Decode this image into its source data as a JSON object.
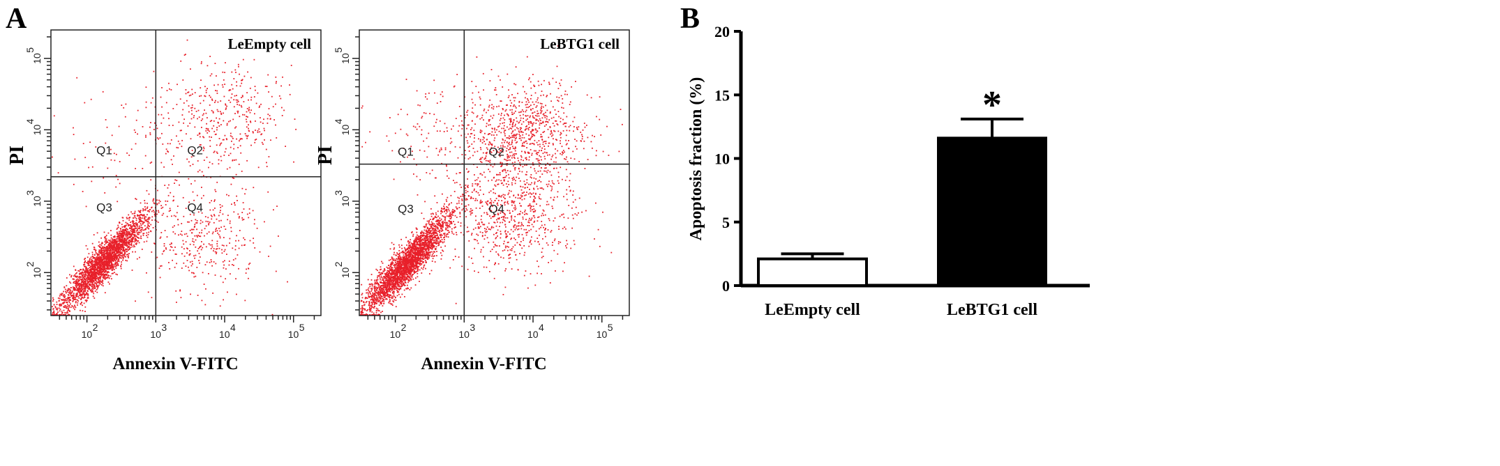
{
  "panels": {
    "a_label": "A",
    "b_label": "B"
  },
  "chart_data": [
    {
      "type": "scatter",
      "title": "LeEmpty cell",
      "xlabel": "Annexin V-FITC",
      "ylabel": "PI",
      "xscale": "log",
      "yscale": "log",
      "xlim": [
        30,
        250000
      ],
      "ylim": [
        25,
        250000
      ],
      "x_ticks": [
        {
          "value": 100,
          "base": "10",
          "exp": "2"
        },
        {
          "value": 1000,
          "base": "10",
          "exp": "3"
        },
        {
          "value": 10000,
          "base": "10",
          "exp": "4"
        },
        {
          "value": 100000,
          "base": "10",
          "exp": "5"
        }
      ],
      "y_ticks": [
        {
          "value": 100,
          "base": "10",
          "exp": "2"
        },
        {
          "value": 1000,
          "base": "10",
          "exp": "3"
        },
        {
          "value": 10000,
          "base": "10",
          "exp": "4"
        },
        {
          "value": 100000,
          "base": "10",
          "exp": "5"
        }
      ],
      "gate": {
        "x": 1000,
        "y": 2200
      },
      "quadrants": [
        "Q1",
        "Q2",
        "Q3",
        "Q4"
      ],
      "color": "#e8202a",
      "populations": [
        {
          "cx": 180,
          "cy": 150,
          "n": 2600
        },
        {
          "cx": 8000,
          "cy": 15000,
          "n": 420
        },
        {
          "cx": 5000,
          "cy": 300,
          "n": 380
        },
        {
          "cx": 400,
          "cy": 6000,
          "n": 90
        }
      ]
    },
    {
      "type": "scatter",
      "title": "LeBTG1 cell",
      "xlabel": "Annexin V-FITC",
      "ylabel": "PI",
      "xscale": "log",
      "yscale": "log",
      "xlim": [
        30,
        250000
      ],
      "ylim": [
        25,
        250000
      ],
      "x_ticks": [
        {
          "value": 100,
          "base": "10",
          "exp": "2"
        },
        {
          "value": 1000,
          "base": "10",
          "exp": "3"
        },
        {
          "value": 10000,
          "base": "10",
          "exp": "4"
        },
        {
          "value": 100000,
          "base": "10",
          "exp": "5"
        }
      ],
      "y_ticks": [
        {
          "value": 100,
          "base": "10",
          "exp": "2"
        },
        {
          "value": 1000,
          "base": "10",
          "exp": "3"
        },
        {
          "value": 10000,
          "base": "10",
          "exp": "4"
        },
        {
          "value": 100000,
          "base": "10",
          "exp": "5"
        }
      ],
      "gate": {
        "x": 1000,
        "y": 3300
      },
      "quadrants": [
        "Q1",
        "Q2",
        "Q3",
        "Q4"
      ],
      "color": "#e8202a",
      "populations": [
        {
          "cx": 150,
          "cy": 140,
          "n": 2800
        },
        {
          "cx": 7000,
          "cy": 9000,
          "n": 900
        },
        {
          "cx": 5000,
          "cy": 600,
          "n": 700
        },
        {
          "cx": 400,
          "cy": 8000,
          "n": 120
        }
      ]
    },
    {
      "type": "bar",
      "categories": [
        "LeEmpty cell",
        "LeBTG1 cell"
      ],
      "values": [
        2.1,
        11.6
      ],
      "errors": [
        0.4,
        1.5
      ],
      "fills": [
        "#ffffff",
        "#000000"
      ],
      "annotations": [
        "",
        "*"
      ],
      "ylabel": "Apoptosis fraction (%)",
      "ylim": [
        0,
        20
      ],
      "y_ticks": [
        "0",
        "5",
        "10",
        "15",
        "20"
      ]
    }
  ]
}
